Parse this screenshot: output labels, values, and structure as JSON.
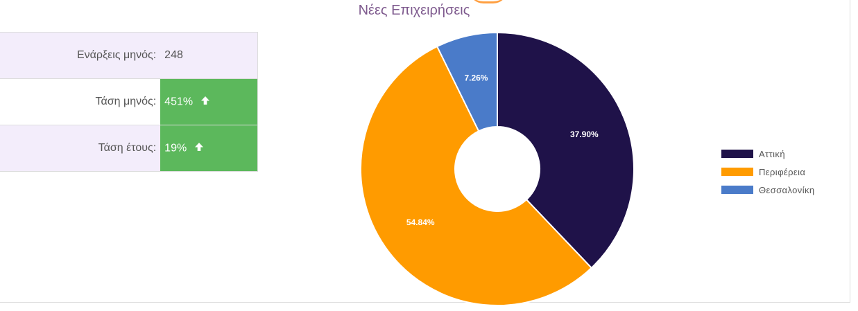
{
  "stats": {
    "rows": [
      {
        "label": "Ενάρξεις μηνός:",
        "value": "248",
        "trend": ""
      },
      {
        "label": "Τάση μηνός:",
        "value": "451%",
        "trend": "up"
      },
      {
        "label": "Τάση έτους:",
        "value": "19%",
        "trend": "up"
      }
    ],
    "colors": {
      "shaded_row": "#f3edfb",
      "positive": "#5cb85c"
    }
  },
  "chart_data": {
    "type": "pie",
    "donut": true,
    "title": "Νέες Επιχειρήσεις",
    "series": [
      {
        "name": "Αττική",
        "value": 37.9,
        "label": "37.90%",
        "color": "#1f1249"
      },
      {
        "name": "Περιφέρεια",
        "value": 54.84,
        "label": "54.84%",
        "color": "#ff9b00"
      },
      {
        "name": "Θεσσαλονίκη",
        "value": 7.26,
        "label": "7.26%",
        "color": "#4a7bc9"
      }
    ],
    "legend": "right"
  }
}
